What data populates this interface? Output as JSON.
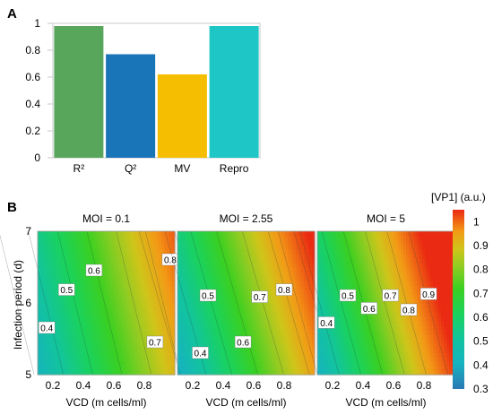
{
  "figure": {
    "panel_a_label": "A",
    "panel_b_label": "B"
  },
  "chart_data": [
    {
      "type": "bar",
      "panel": "A",
      "categories": [
        "R²",
        "Q²",
        "MV",
        "Repro"
      ],
      "values": [
        0.98,
        0.77,
        0.62,
        0.98
      ],
      "colors": [
        "#58a55c",
        "#1a74b8",
        "#f5be00",
        "#1fc6c6"
      ],
      "ylim": [
        0,
        1
      ],
      "yticks": [
        "0",
        "0.2",
        "0.4",
        "0.6",
        "0.8",
        "1"
      ],
      "grid": false,
      "title": "",
      "xlabel": "",
      "ylabel": ""
    },
    {
      "type": "heatmap",
      "panel": "B",
      "ylabel": "Infection period (d)",
      "yrange": [
        5,
        7
      ],
      "yticks": [
        "5",
        "6",
        "7"
      ],
      "colorbar": {
        "label": "[VP1] (a.u.)",
        "range": [
          0.3,
          1.05
        ],
        "ticks": [
          "0.3",
          "0.4",
          "0.5",
          "0.6",
          "0.7",
          "0.8",
          "0.9",
          "1"
        ]
      },
      "subplots": [
        {
          "title": "MOI = 0.1",
          "xlabel": "VCD (m cells/ml)",
          "xrange": [
            0.1,
            1.0
          ],
          "xticks": [
            "0.2",
            "0.4",
            "0.6",
            "0.8"
          ],
          "contour_labels": [
            {
              "text": "0.4",
              "x": 0.16,
              "y": 5.65
            },
            {
              "text": "0.5",
              "x": 0.29,
              "y": 6.18
            },
            {
              "text": "0.6",
              "x": 0.47,
              "y": 6.45
            },
            {
              "text": "0.7",
              "x": 0.87,
              "y": 5.45
            },
            {
              "text": "0.8",
              "x": 0.97,
              "y": 6.6
            }
          ]
        },
        {
          "title": "MOI = 2.55",
          "xlabel": "VCD (m cells/ml)",
          "xrange": [
            0.1,
            1.0
          ],
          "xticks": [
            "0.2",
            "0.4",
            "0.6",
            "0.8"
          ],
          "contour_labels": [
            {
              "text": "0.4",
              "x": 0.25,
              "y": 5.3
            },
            {
              "text": "0.5",
              "x": 0.3,
              "y": 6.1
            },
            {
              "text": "0.6",
              "x": 0.53,
              "y": 5.45
            },
            {
              "text": "0.7",
              "x": 0.64,
              "y": 6.08
            },
            {
              "text": "0.8",
              "x": 0.8,
              "y": 6.18
            }
          ]
        },
        {
          "title": "MOI = 5",
          "xlabel": "VCD (m cells/ml)",
          "xrange": [
            0.1,
            1.0
          ],
          "xticks": [
            "0.2",
            "0.4",
            "0.6",
            "0.8"
          ],
          "contour_labels": [
            {
              "text": "0.4",
              "x": 0.16,
              "y": 5.72
            },
            {
              "text": "0.5",
              "x": 0.3,
              "y": 6.1
            },
            {
              "text": "0.6",
              "x": 0.44,
              "y": 5.92
            },
            {
              "text": "0.7",
              "x": 0.58,
              "y": 6.1
            },
            {
              "text": "0.8",
              "x": 0.7,
              "y": 5.9
            },
            {
              "text": "0.9",
              "x": 0.83,
              "y": 6.12
            }
          ]
        }
      ]
    }
  ]
}
